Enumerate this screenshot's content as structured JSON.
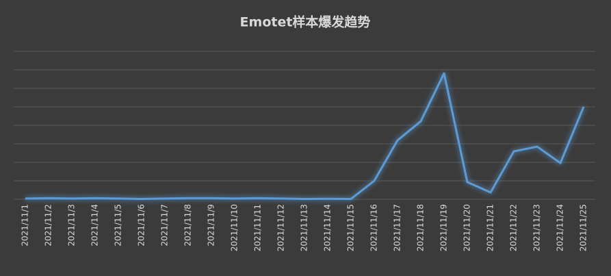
{
  "chart_data": {
    "type": "line",
    "title": "Emotet样本爆发趋势",
    "categories": [
      "2021/11/1",
      "2021/11/2",
      "2021/11/3",
      "2021/11/4",
      "2021/11/5",
      "2021/11/6",
      "2021/11/7",
      "2021/11/8",
      "2021/11/9",
      "2021/11/10",
      "2021/11/11",
      "2021/11/12",
      "2021/11/13",
      "2021/11/14",
      "2021/11/15",
      "2021/11/16",
      "2021/11/17",
      "2021/11/18",
      "2021/11/19",
      "2021/11/20",
      "2021/11/21",
      "2021/11/22",
      "2021/11/23",
      "2021/11/24",
      "2021/11/25"
    ],
    "series": [
      {
        "color": "#5b9bd5",
        "values": [
          0.04,
          0.06,
          0.04,
          0.06,
          0.04,
          0.02,
          0.04,
          0.06,
          0.06,
          0.04,
          0.06,
          0.04,
          0.02,
          0.03,
          0.02,
          1.0,
          3.19,
          4.22,
          6.81,
          0.93,
          0.37,
          2.59,
          2.85,
          1.96,
          5.0
        ]
      }
    ],
    "ylim": [
      0,
      8
    ],
    "yticks": [
      0,
      1,
      2,
      3,
      4,
      5,
      6,
      7,
      8
    ],
    "grid": true
  }
}
